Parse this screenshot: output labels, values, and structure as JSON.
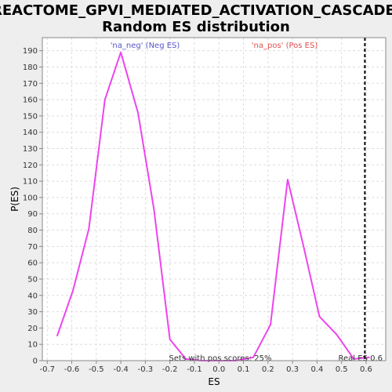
{
  "chart_data": {
    "type": "line",
    "title": "REACTOME_GPVI_MEDIATED_ACTIVATION_CASCADE:",
    "subtitle": "Random ES distribution",
    "xlabel": "ES",
    "ylabel": "P(ES)",
    "xlim": [
      -0.72,
      0.68
    ],
    "ylim": [
      0,
      198
    ],
    "xticks": [
      -0.7,
      -0.6,
      -0.5,
      -0.4,
      -0.3,
      -0.2,
      -0.1,
      0.0,
      0.1,
      0.2,
      0.3,
      0.4,
      0.5,
      0.6
    ],
    "yticks": [
      0,
      10,
      20,
      30,
      40,
      50,
      60,
      70,
      80,
      90,
      100,
      110,
      120,
      130,
      140,
      150,
      160,
      170,
      180,
      190
    ],
    "grid": true,
    "series": [
      {
        "color": "#ee44ee",
        "x": [
          -0.66,
          -0.595,
          -0.53,
          -0.465,
          -0.4,
          -0.33,
          -0.265,
          -0.2,
          -0.135,
          -0.07,
          0.0,
          0.07,
          0.14,
          0.21,
          0.28,
          0.345,
          0.41,
          0.48,
          0.55,
          0.615
        ],
        "y": [
          15,
          43,
          81,
          160,
          189,
          152,
          93,
          13,
          1,
          0,
          0,
          0,
          2,
          22,
          111,
          70,
          27,
          16,
          1,
          2
        ]
      }
    ],
    "annotations": {
      "neg_label": "'na_neg' (Neg ES)",
      "pos_label": "'na_pos' (Pos ES)",
      "sets_with_pos": "Sets with pos scores: 25%",
      "real_es": "Real ES 0.6"
    },
    "real_es_value": 0.595,
    "colors": {
      "neg": "#5555cc",
      "pos": "#e05050",
      "marker": "#000000"
    }
  }
}
